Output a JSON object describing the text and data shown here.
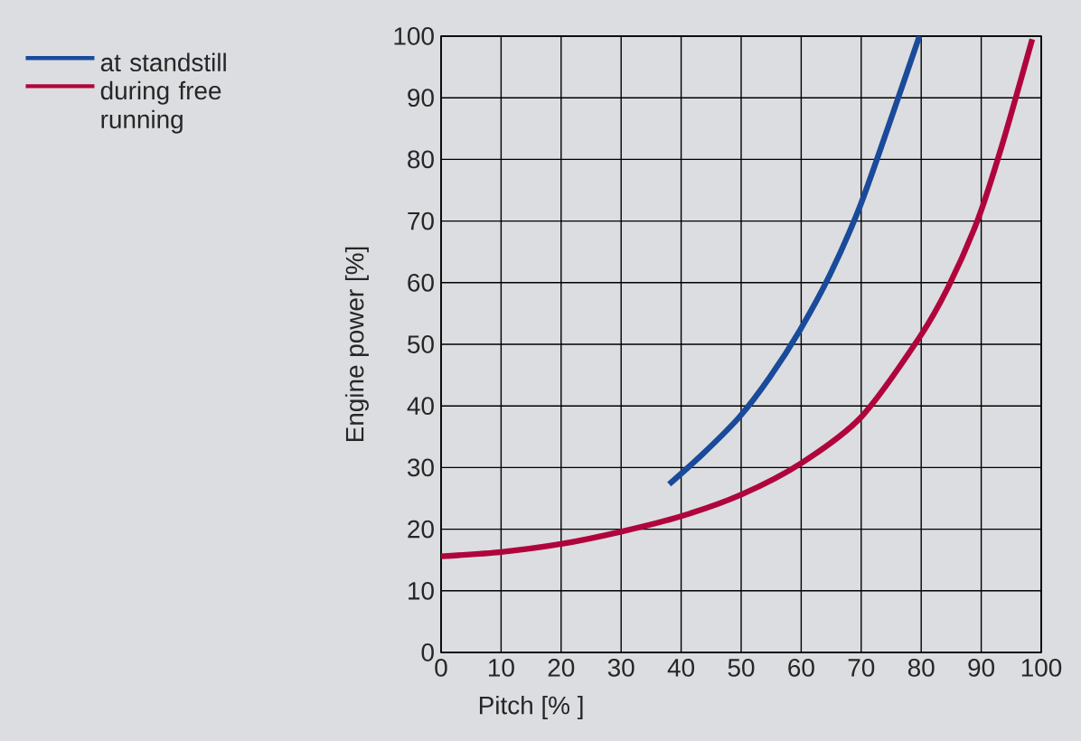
{
  "chart_data": {
    "type": "line",
    "xlabel": "Pitch [%  ]",
    "ylabel": "Engine power [%]",
    "xlim": [
      0,
      100
    ],
    "ylim": [
      0,
      100
    ],
    "xticks": [
      0,
      10,
      20,
      30,
      40,
      50,
      60,
      70,
      80,
      90,
      100
    ],
    "yticks": [
      0,
      10,
      20,
      30,
      40,
      50,
      60,
      70,
      80,
      90,
      100
    ],
    "grid": true,
    "legend": "left",
    "marker": "none",
    "line_style": "solid",
    "series": [
      {
        "name": "at standstill",
        "color": "#1a4a9a",
        "x": [
          38,
          43.6,
          49.7,
          54.8,
          59.8,
          64.8,
          69.8,
          74.9,
          79.7
        ],
        "values": [
          27.3,
          32.2,
          38.2,
          44.7,
          52.3,
          61.3,
          72.4,
          86.4,
          100
        ]
      },
      {
        "name": "during free running",
        "color": "#b0053c",
        "x": [
          0,
          10,
          20,
          30,
          40,
          50,
          60,
          70,
          79.5,
          84.5,
          89.5,
          93.5,
          98.5
        ],
        "values": [
          15.6,
          16.3,
          17.6,
          19.6,
          22.1,
          25.6,
          30.7,
          38.2,
          50.8,
          59.3,
          70.4,
          82.4,
          99.5
        ]
      }
    ]
  }
}
